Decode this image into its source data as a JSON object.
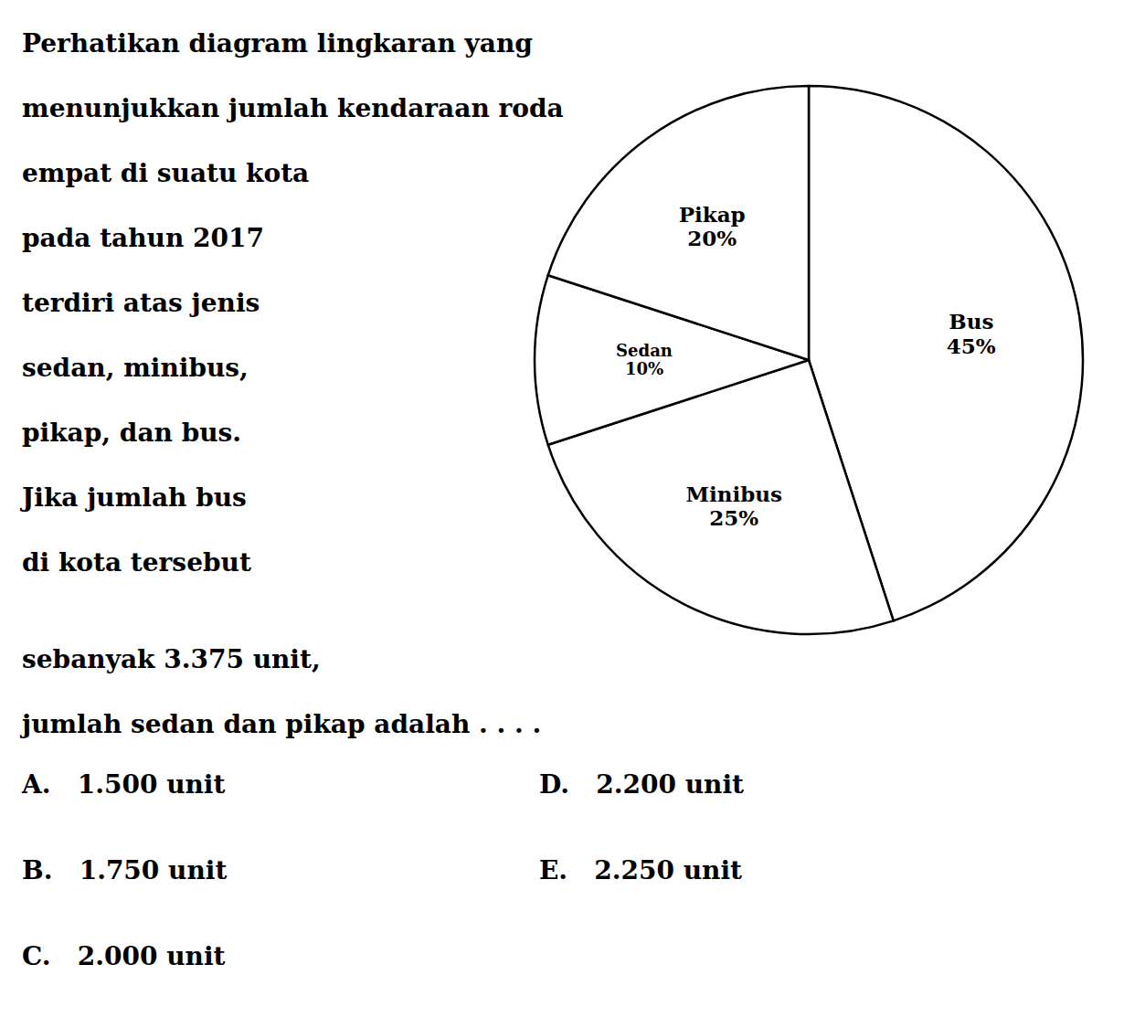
{
  "chart_data": {
    "type": "pie",
    "categories": [
      "Bus",
      "Minibus",
      "Sedan",
      "Pikap"
    ],
    "values": [
      45,
      25,
      10,
      20
    ],
    "value_labels": [
      "45%",
      "25%",
      "10%",
      "20%"
    ],
    "data_labels": true,
    "colors": [
      "#ffffff",
      "#ffffff",
      "#ffffff",
      "#ffffff"
    ],
    "annotations": [
      "Perhatikan diagram lingkaran yang",
      "menunjukkan jumlah kendaraan roda",
      "empat di suatu kota",
      "pada tahun 2017",
      "terdiri atas jenis",
      "sedan, minibus,",
      "pikap, dan bus.",
      "Jika jumlah bus",
      "di kota tersebut",
      "sebanyak 3.375 unit,",
      "jumlah sedan dan pikap adalah . . . .",
      "A.   1.500 unit",
      "B.   1.750 unit",
      "C.   2.000 unit",
      "D.   2.200 unit",
      "E.   2.250 unit"
    ]
  }
}
